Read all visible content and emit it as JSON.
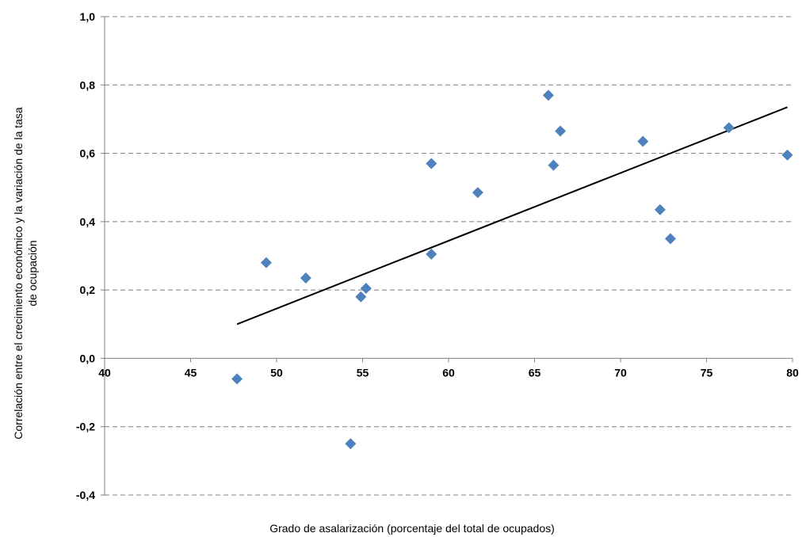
{
  "chart_data": {
    "type": "scatter",
    "title": "",
    "xlabel": "Grado de asalarización  (porcentaje del total de ocupados)",
    "ylabel_lines": [
      "Correlación entre el crecimiento económico y la variación de la tasa",
      "de ocupación"
    ],
    "xlim": [
      40,
      80
    ],
    "ylim": [
      -0.4,
      1.0
    ],
    "x_ticks": [
      40,
      45,
      50,
      55,
      60,
      65,
      70,
      75,
      80
    ],
    "y_ticks": [
      -0.4,
      -0.2,
      0.0,
      0.2,
      0.4,
      0.6,
      0.8,
      1.0
    ],
    "x_tick_labels": [
      "40",
      "45",
      "50",
      "55",
      "60",
      "65",
      "70",
      "75",
      "80"
    ],
    "y_tick_labels": [
      "-0,4",
      "-0,2",
      "0,0",
      "0,2",
      "0,4",
      "0,6",
      "0,8",
      "1,0"
    ],
    "grid": true,
    "marker_color": "#4f81bd",
    "trendline_color": "#000000",
    "points": [
      {
        "x": 47.7,
        "y": -0.06
      },
      {
        "x": 49.4,
        "y": 0.28
      },
      {
        "x": 51.7,
        "y": 0.235
      },
      {
        "x": 54.3,
        "y": -0.25
      },
      {
        "x": 54.9,
        "y": 0.18
      },
      {
        "x": 55.2,
        "y": 0.205
      },
      {
        "x": 59.0,
        "y": 0.305
      },
      {
        "x": 59.0,
        "y": 0.57
      },
      {
        "x": 61.7,
        "y": 0.485
      },
      {
        "x": 65.8,
        "y": 0.77
      },
      {
        "x": 66.1,
        "y": 0.565
      },
      {
        "x": 66.5,
        "y": 0.665
      },
      {
        "x": 71.3,
        "y": 0.635
      },
      {
        "x": 72.3,
        "y": 0.435
      },
      {
        "x": 72.9,
        "y": 0.35
      },
      {
        "x": 76.3,
        "y": 0.675
      },
      {
        "x": 79.7,
        "y": 0.595
      }
    ],
    "trendline": {
      "x": [
        47.7,
        79.7
      ],
      "y": [
        0.1,
        0.735
      ]
    }
  }
}
